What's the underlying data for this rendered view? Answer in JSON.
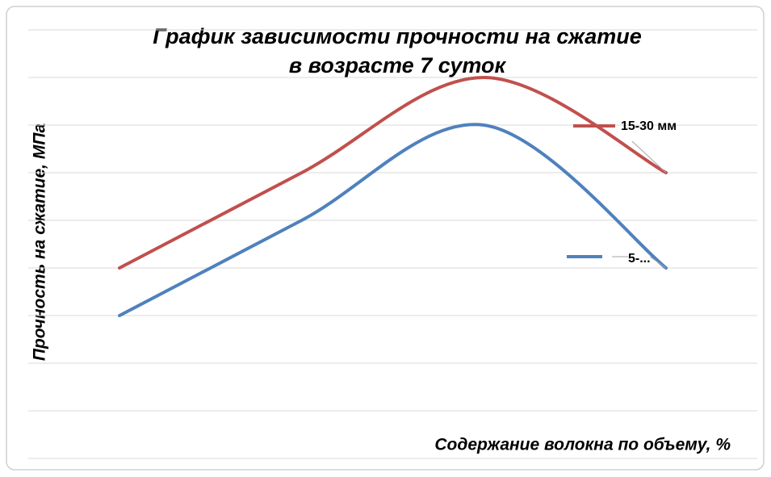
{
  "chart_data": {
    "type": "line",
    "title": [
      "График зависимости прочности на сжатие",
      "в возрасте 7 суток"
    ],
    "x_label": "Содержание волокна по объему, %",
    "y_label": "Прочность на сжатие, МПа",
    "categories": [
      null,
      null,
      null,
      null
    ],
    "series": [
      {
        "name": "15-30 мм",
        "color": "#c0504d",
        "values": [
          4,
          6,
          8,
          6
        ]
      },
      {
        "name": "5-...",
        "color": "#4f81bd",
        "values": [
          3,
          5,
          7,
          4
        ]
      }
    ],
    "ylim": [
      0,
      9
    ],
    "yticks": [
      0,
      1,
      2,
      3,
      4,
      5,
      6,
      7,
      8,
      9
    ],
    "grid": true,
    "smooth": true
  }
}
